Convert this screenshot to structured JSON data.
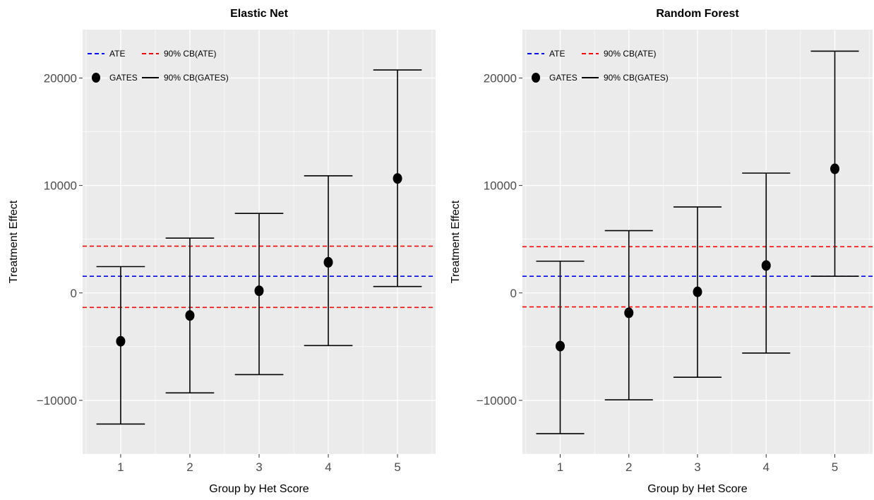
{
  "chart_data": [
    {
      "type": "errorbar",
      "title": "Elastic Net",
      "xlabel": "Group by Het Score",
      "ylabel": "Treatment Effect",
      "categories": [
        "1",
        "2",
        "3",
        "4",
        "5"
      ],
      "x_ticks": [
        "1",
        "2",
        "3",
        "4",
        "5"
      ],
      "y_ticks": [
        -10000,
        0,
        10000,
        20000
      ],
      "y_tick_labels": [
        "−10000",
        "0",
        "10000",
        "20000"
      ],
      "ylim": [
        -15000,
        24500
      ],
      "xlim": [
        0.45,
        5.55
      ],
      "ate": 1550,
      "ate_cb": [
        -1350,
        4350
      ],
      "series": [
        {
          "name": "GATES",
          "values": [
            -4500,
            -2100,
            200,
            2850,
            10650
          ]
        },
        {
          "name": "90% CB(GATES)",
          "lower": [
            -12200,
            -9300,
            -7600,
            -4900,
            600
          ],
          "upper": [
            2450,
            5100,
            7400,
            10900,
            20750
          ]
        }
      ],
      "legend": {
        "position": "top-left",
        "ate": "ATE",
        "ate_cb": "90% CB(ATE)",
        "gates": "GATES",
        "gates_cb": "90% CB(GATES)"
      },
      "grid": true
    },
    {
      "type": "errorbar",
      "title": "Random Forest",
      "xlabel": "Group by Het Score",
      "ylabel": "Treatment Effect",
      "categories": [
        "1",
        "2",
        "3",
        "4",
        "5"
      ],
      "x_ticks": [
        "1",
        "2",
        "3",
        "4",
        "5"
      ],
      "y_ticks": [
        -10000,
        0,
        10000,
        20000
      ],
      "y_tick_labels": [
        "−10000",
        "0",
        "10000",
        "20000"
      ],
      "ylim": [
        -15000,
        24500
      ],
      "xlim": [
        0.45,
        5.55
      ],
      "ate": 1550,
      "ate_cb": [
        -1300,
        4300
      ],
      "series": [
        {
          "name": "GATES",
          "values": [
            -4950,
            -1850,
            100,
            2550,
            11550
          ]
        },
        {
          "name": "90% CB(GATES)",
          "lower": [
            -13100,
            -9950,
            -7850,
            -5600,
            1550
          ],
          "upper": [
            2950,
            5800,
            8000,
            11150,
            22500
          ]
        }
      ],
      "legend": {
        "position": "top-left",
        "ate": "ATE",
        "ate_cb": "90% CB(ATE)",
        "gates": "GATES",
        "gates_cb": "90% CB(GATES)"
      },
      "grid": true
    }
  ],
  "colors": {
    "panel_bg": "#ebebeb",
    "grid": "#ffffff",
    "ate": "#0000ff",
    "ate_cb": "#ff0000",
    "gates": "#000000",
    "tick_text": "#4d4d4d"
  }
}
